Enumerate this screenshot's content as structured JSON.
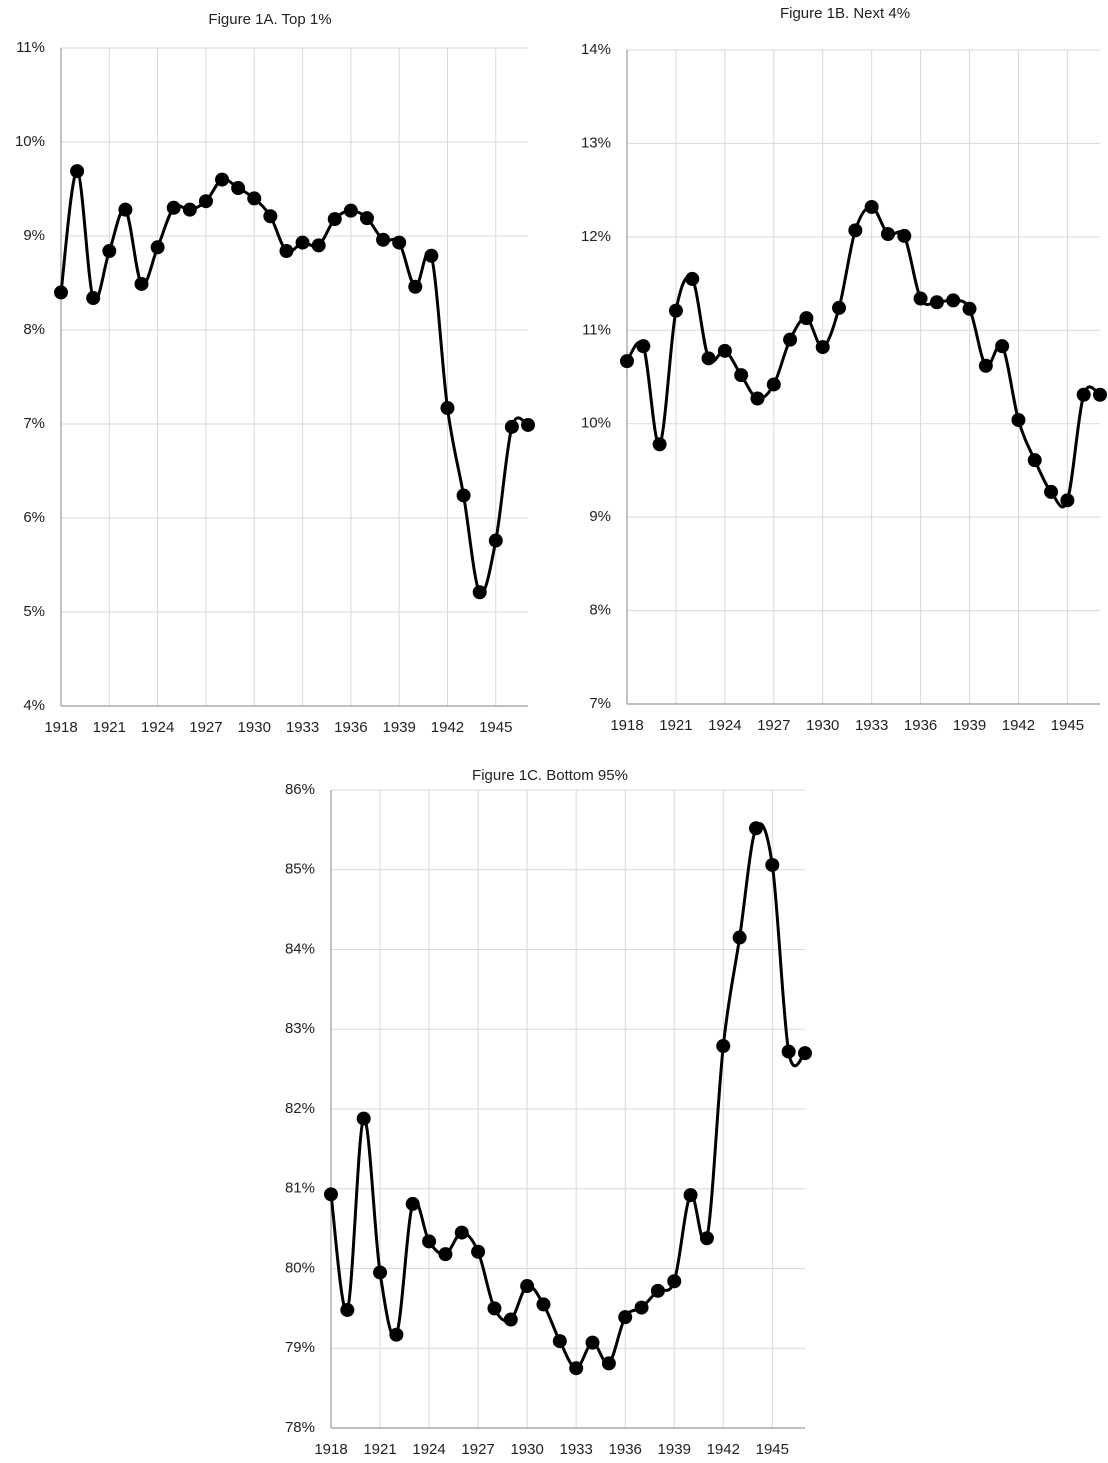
{
  "chart_data": [
    {
      "type": "line",
      "title": "Figure 1A. Top 1%",
      "x": [
        1918,
        1919,
        1920,
        1921,
        1922,
        1923,
        1924,
        1925,
        1926,
        1927,
        1928,
        1929,
        1930,
        1931,
        1932,
        1933,
        1934,
        1935,
        1936,
        1937,
        1938,
        1939,
        1940,
        1941,
        1942,
        1943,
        1944,
        1945,
        1946,
        1947
      ],
      "values": [
        8.4,
        9.69,
        8.34,
        8.84,
        9.28,
        8.49,
        8.88,
        9.3,
        9.28,
        9.37,
        9.6,
        9.51,
        9.4,
        9.21,
        8.84,
        8.93,
        8.9,
        9.18,
        9.27,
        9.19,
        8.96,
        8.93,
        8.46,
        8.79,
        7.17,
        6.24,
        5.21,
        5.76,
        6.97,
        6.99
      ],
      "color": "#000000",
      "xlim": [
        1918,
        1947
      ],
      "xticks": [
        1918,
        1921,
        1924,
        1927,
        1930,
        1933,
        1936,
        1939,
        1942,
        1945
      ],
      "ylim": [
        4,
        11
      ],
      "yticks": [
        {
          "value": 4,
          "label": "4%"
        },
        {
          "value": 5,
          "label": "5%"
        },
        {
          "value": 6,
          "label": "6%"
        },
        {
          "value": 7,
          "label": "7%"
        },
        {
          "value": 8,
          "label": "8%"
        },
        {
          "value": 9,
          "label": "9%"
        },
        {
          "value": 10,
          "label": "10%"
        },
        {
          "value": 11,
          "label": "11%"
        }
      ],
      "grid": true
    },
    {
      "type": "line",
      "title": "Figure 1B. Next 4%",
      "x": [
        1918,
        1919,
        1920,
        1921,
        1922,
        1923,
        1924,
        1925,
        1926,
        1927,
        1928,
        1929,
        1930,
        1931,
        1932,
        1933,
        1934,
        1935,
        1936,
        1937,
        1938,
        1939,
        1940,
        1941,
        1942,
        1943,
        1944,
        1945,
        1946,
        1947
      ],
      "values": [
        10.67,
        10.83,
        9.78,
        11.21,
        11.55,
        10.7,
        10.78,
        10.52,
        10.27,
        10.42,
        10.9,
        11.13,
        10.82,
        11.24,
        12.07,
        12.32,
        12.03,
        12.01,
        11.34,
        11.3,
        11.32,
        11.23,
        10.62,
        10.83,
        10.04,
        9.61,
        9.27,
        9.18,
        10.31,
        10.31
      ],
      "color": "#000000",
      "xlim": [
        1918,
        1947
      ],
      "xticks": [
        1918,
        1921,
        1924,
        1927,
        1930,
        1933,
        1936,
        1939,
        1942,
        1945
      ],
      "ylim": [
        7,
        14
      ],
      "yticks": [
        {
          "value": 7,
          "label": "7%"
        },
        {
          "value": 8,
          "label": "8%"
        },
        {
          "value": 9,
          "label": "9%"
        },
        {
          "value": 10,
          "label": "10%"
        },
        {
          "value": 11,
          "label": "11%"
        },
        {
          "value": 12,
          "label": "12%"
        },
        {
          "value": 13,
          "label": "13%"
        },
        {
          "value": 14,
          "label": "14%"
        }
      ],
      "grid": true
    },
    {
      "type": "line",
      "title": "Figure 1C. Bottom 95%",
      "x": [
        1918,
        1919,
        1920,
        1921,
        1922,
        1923,
        1924,
        1925,
        1926,
        1927,
        1928,
        1929,
        1930,
        1931,
        1932,
        1933,
        1934,
        1935,
        1936,
        1937,
        1938,
        1939,
        1940,
        1941,
        1942,
        1943,
        1944,
        1945,
        1946,
        1947
      ],
      "values": [
        80.93,
        79.48,
        81.88,
        79.95,
        79.17,
        80.81,
        80.34,
        80.18,
        80.45,
        80.21,
        79.5,
        79.36,
        79.78,
        79.55,
        79.09,
        78.75,
        79.07,
        78.81,
        79.39,
        79.51,
        79.72,
        79.84,
        80.92,
        80.38,
        82.79,
        84.15,
        85.52,
        85.06,
        82.72,
        82.7
      ],
      "color": "#000000",
      "xlim": [
        1918,
        1947
      ],
      "xticks": [
        1918,
        1921,
        1924,
        1927,
        1930,
        1933,
        1936,
        1939,
        1942,
        1945
      ],
      "ylim": [
        78,
        86
      ],
      "yticks": [
        {
          "value": 78,
          "label": "78%"
        },
        {
          "value": 79,
          "label": "79%"
        },
        {
          "value": 80,
          "label": "80%"
        },
        {
          "value": 81,
          "label": "81%"
        },
        {
          "value": 82,
          "label": "82%"
        },
        {
          "value": 83,
          "label": "83%"
        },
        {
          "value": 84,
          "label": "84%"
        },
        {
          "value": 85,
          "label": "85%"
        },
        {
          "value": 86,
          "label": "86%"
        }
      ],
      "grid": true
    }
  ]
}
